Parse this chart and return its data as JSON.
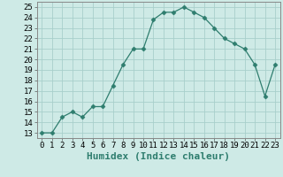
{
  "x": [
    0,
    1,
    2,
    3,
    4,
    5,
    6,
    7,
    8,
    9,
    10,
    11,
    12,
    13,
    14,
    15,
    16,
    17,
    18,
    19,
    20,
    21,
    22,
    23
  ],
  "y": [
    13,
    13,
    14.5,
    15,
    14.5,
    15.5,
    15.5,
    17.5,
    19.5,
    21,
    21,
    23.8,
    24.5,
    24.5,
    25,
    24.5,
    24,
    23,
    22,
    21.5,
    21,
    19.5,
    16.5,
    19.5
  ],
  "line_color": "#2e7d6e",
  "marker": "D",
  "marker_size": 2.5,
  "bg_color": "#ceeae6",
  "grid_color": "#a8cfcb",
  "xlabel": "Humidex (Indice chaleur)",
  "xlim": [
    -0.5,
    23.5
  ],
  "ylim": [
    12.5,
    25.5
  ],
  "yticks": [
    13,
    14,
    15,
    16,
    17,
    18,
    19,
    20,
    21,
    22,
    23,
    24,
    25
  ],
  "xtick_labels": [
    "0",
    "1",
    "2",
    "3",
    "4",
    "5",
    "6",
    "7",
    "8",
    "9",
    "10",
    "11",
    "12",
    "13",
    "14",
    "15",
    "16",
    "17",
    "18",
    "19",
    "20",
    "21",
    "22",
    "23"
  ],
  "tick_fontsize": 6.5,
  "label_fontsize": 8
}
